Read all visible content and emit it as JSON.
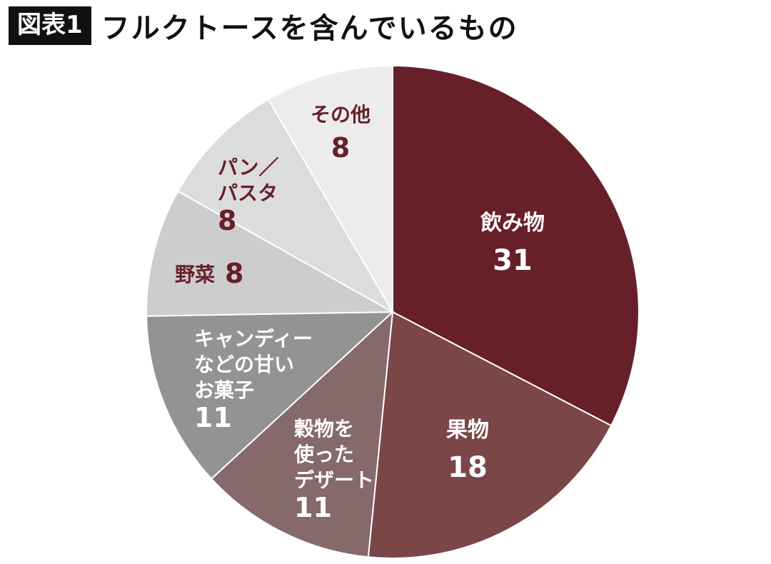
{
  "header": {
    "badge": "図表1",
    "title": "フルクトースを含んでいるもの"
  },
  "chart_data": {
    "type": "pie",
    "title": "フルクトースを含んでいるもの",
    "slices": [
      {
        "label": "飲み物",
        "label_lines": [
          "飲み物"
        ],
        "value": 31,
        "color": "#672029",
        "text_color": "#ffffff"
      },
      {
        "label": "果物",
        "label_lines": [
          "果物"
        ],
        "value": 18,
        "color": "#7a4648",
        "text_color": "#ffffff"
      },
      {
        "label": "穀物を使ったデザート",
        "label_lines": [
          "穀物を",
          "使った",
          "デザート"
        ],
        "value": 11,
        "color": "#86696b",
        "text_color": "#ffffff"
      },
      {
        "label": "キャンディーなどの甘いお菓子",
        "label_lines": [
          "キャンディー",
          "などの甘い",
          "お菓子"
        ],
        "value": 11,
        "color": "#939393",
        "text_color": "#ffffff"
      },
      {
        "label": "野菜",
        "label_lines": [
          "野菜"
        ],
        "value": 8,
        "color": "#cdcdcd",
        "text_color": "#672029"
      },
      {
        "label": "パン／パスタ",
        "label_lines": [
          "パン／",
          "パスタ"
        ],
        "value": 8,
        "color": "#dcdcdc",
        "text_color": "#672029"
      },
      {
        "label": "その他",
        "label_lines": [
          "その他"
        ],
        "value": 8,
        "color": "#ececec",
        "text_color": "#672029"
      }
    ]
  }
}
